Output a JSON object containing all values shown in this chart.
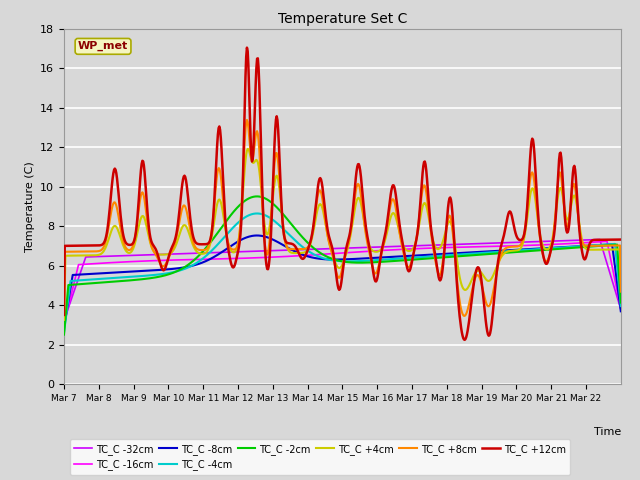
{
  "title": "Temperature Set C",
  "xlabel": "Time",
  "ylabel": "Temperature (C)",
  "ylim": [
    0,
    18
  ],
  "yticks": [
    0,
    2,
    4,
    6,
    8,
    10,
    12,
    14,
    16,
    18
  ],
  "bg_color": "#d8d8d8",
  "legend_label": "WP_met",
  "xtick_labels": [
    "Mar 7",
    "Mar 8",
    "Mar 9",
    "Mar 10",
    "Mar 11",
    "Mar 12",
    "Mar 13",
    "Mar 14",
    "Mar 15",
    "Mar 16",
    "Mar 17",
    "Mar 18",
    "Mar 19",
    "Mar 20",
    "Mar 21",
    "Mar 22"
  ],
  "n_days": 16,
  "pts_per_day": 48,
  "series_colors": {
    "TC_C -32cm": "#cc00ff",
    "TC_C -16cm": "#ff00ff",
    "TC_C -8cm": "#0000cc",
    "TC_C -4cm": "#00cccc",
    "TC_C -2cm": "#00cc00",
    "TC_C +4cm": "#cccc00",
    "TC_C +8cm": "#ff8800",
    "TC_C +12cm": "#cc0000"
  }
}
